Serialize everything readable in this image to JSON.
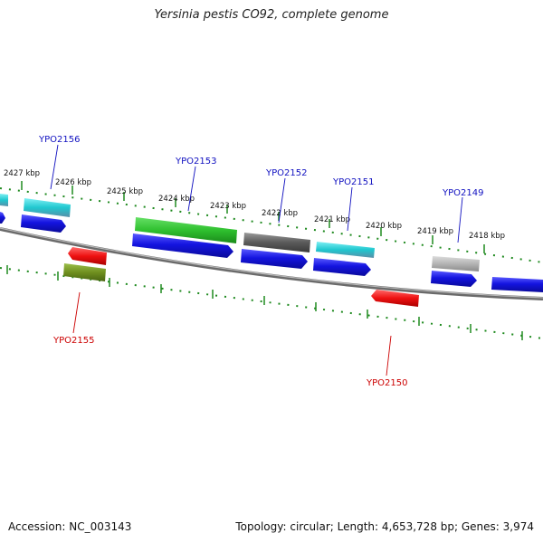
{
  "title": "Yersinia pestis CO92, complete genome",
  "footer": {
    "accession": "Accession: NC_003143",
    "summary": "Topology: circular; Length: 4,653,728 bp; Genes: 3,974"
  },
  "colors": {
    "backbone": "#888888",
    "ruler": "#1f8a1f",
    "tick_label": "#111111",
    "label_forward": "#1010c0",
    "label_reverse": "#cc0000",
    "blue": "#1414e0",
    "cyan": "#1fc7cf",
    "green": "#2fc02f",
    "gray": "#6a6a6a",
    "lightgray": "#b4b4b4",
    "red": "#ee1111",
    "olive": "#6f8f1f"
  },
  "ruler_labels": [
    {
      "text": "2427 kbp"
    },
    {
      "text": "2426 kbp"
    },
    {
      "text": "2425 kbp"
    },
    {
      "text": "2424 kbp"
    },
    {
      "text": "2423 kbp"
    },
    {
      "text": "2422 kbp"
    },
    {
      "text": "2421 kbp"
    },
    {
      "text": "2420 kbp"
    },
    {
      "text": "2419 kbp"
    },
    {
      "text": "2418 kbp"
    }
  ],
  "gene_labels": [
    {
      "text": "YPO2156",
      "strand": "forward"
    },
    {
      "text": "YPO2153",
      "strand": "forward"
    },
    {
      "text": "YPO2152",
      "strand": "forward"
    },
    {
      "text": "YPO2151",
      "strand": "forward"
    },
    {
      "text": "YPO2149",
      "strand": "forward"
    },
    {
      "text": "YPO2155",
      "strand": "reverse"
    },
    {
      "text": "YPO2150",
      "strand": "reverse"
    }
  ]
}
